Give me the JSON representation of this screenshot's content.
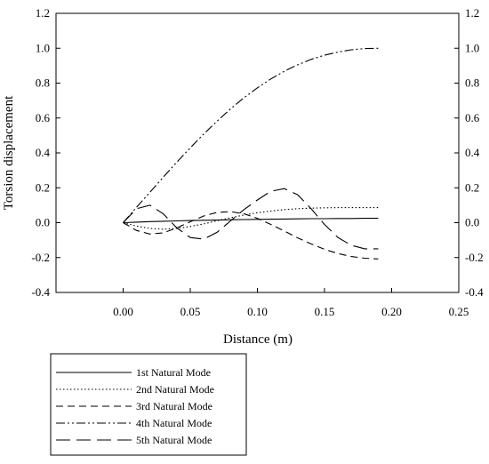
{
  "chart_data": {
    "type": "line",
    "xlabel": "Distance (m)",
    "ylabel": "Torsion displacement",
    "xlim": [
      -0.05,
      0.25
    ],
    "ylim": [
      -0.4,
      1.2
    ],
    "x_ticks": [
      "0.00",
      "0.05",
      "0.10",
      "0.15",
      "0.20",
      "0.25"
    ],
    "y_ticks": [
      "-0.4",
      "-0.2",
      "0.0",
      "0.2",
      "0.4",
      "0.6",
      "0.8",
      "1.0",
      "1.2"
    ],
    "right_axis_ticks": true,
    "grid": false,
    "legend_position": "below",
    "x": [
      0.0,
      0.01,
      0.02,
      0.03,
      0.04,
      0.05,
      0.06,
      0.07,
      0.08,
      0.09,
      0.1,
      0.11,
      0.12,
      0.13,
      0.14,
      0.15,
      0.16,
      0.17,
      0.18,
      0.19
    ],
    "series": [
      {
        "name": "1st Natural Mode",
        "dash": "solid",
        "values": [
          0.0,
          0.003,
          0.006,
          0.008,
          0.01,
          0.012,
          0.014,
          0.015,
          0.017,
          0.018,
          0.019,
          0.02,
          0.021,
          0.022,
          0.023,
          0.023,
          0.024,
          0.024,
          0.025,
          0.025
        ]
      },
      {
        "name": "2nd Natural Mode",
        "dash": "dotted",
        "values": [
          0.0,
          -0.02,
          -0.033,
          -0.037,
          -0.033,
          -0.022,
          -0.007,
          0.011,
          0.028,
          0.044,
          0.057,
          0.067,
          0.075,
          0.08,
          0.083,
          0.085,
          0.086,
          0.086,
          0.086,
          0.086
        ]
      },
      {
        "name": "3rd Natural Mode",
        "dash": "dashed",
        "values": [
          0.0,
          -0.045,
          -0.065,
          -0.058,
          -0.03,
          0.005,
          0.038,
          0.059,
          0.063,
          0.051,
          0.025,
          -0.01,
          -0.048,
          -0.087,
          -0.122,
          -0.153,
          -0.177,
          -0.194,
          -0.204,
          -0.208
        ]
      },
      {
        "name": "4th Natural Mode",
        "dash": "dash-dot-dot",
        "values": [
          0.0,
          0.088,
          0.175,
          0.262,
          0.347,
          0.429,
          0.508,
          0.582,
          0.652,
          0.716,
          0.773,
          0.824,
          0.868,
          0.905,
          0.936,
          0.96,
          0.978,
          0.991,
          0.998,
          1.0
        ]
      },
      {
        "name": "5th Natural Mode",
        "dash": "long-dash",
        "values": [
          0.0,
          0.08,
          0.1,
          0.05,
          -0.03,
          -0.085,
          -0.095,
          -0.055,
          0.01,
          0.075,
          0.13,
          0.18,
          0.195,
          0.16,
          0.08,
          -0.01,
          -0.085,
          -0.13,
          -0.15,
          -0.15
        ]
      }
    ]
  }
}
